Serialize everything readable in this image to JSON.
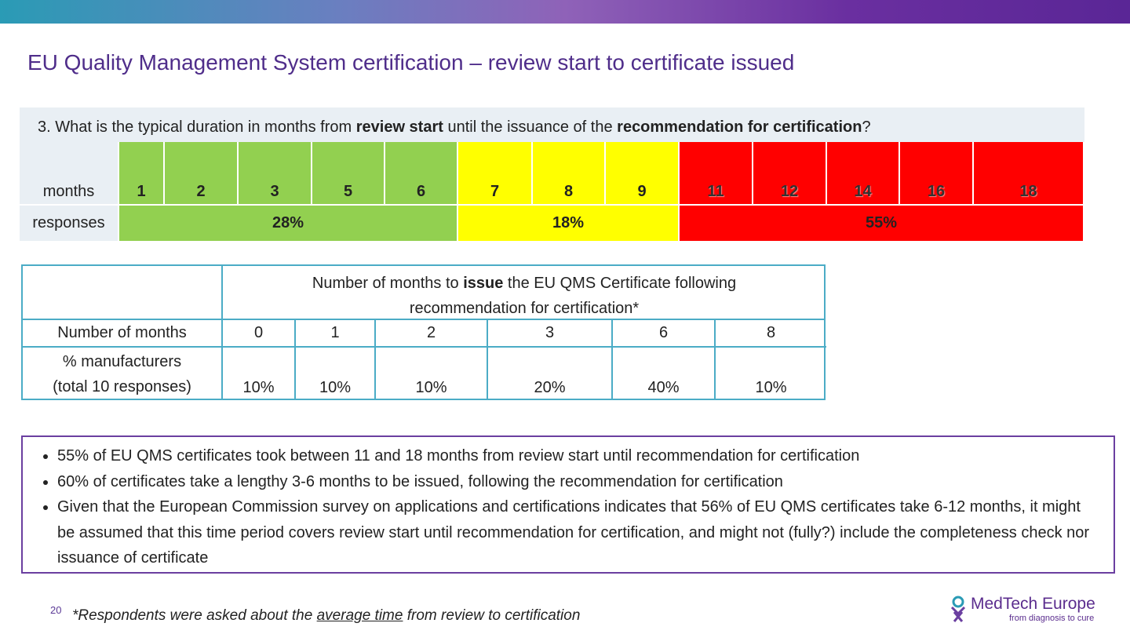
{
  "title": "EU Quality Management System certification – review start to certificate issued",
  "question_table": {
    "question": [
      "3. What is the typical duration in months from ",
      "review start",
      " until the issuance of the ",
      "recommendation for certification",
      "?"
    ],
    "row_labels": [
      "months",
      "responses"
    ],
    "groups": [
      {
        "color": "#92d050",
        "months": [
          "1",
          "2",
          "3",
          "5",
          "6"
        ],
        "response": "28%"
      },
      {
        "color": "#ffff00",
        "months": [
          "7",
          "8",
          "9"
        ],
        "response": "18%"
      },
      {
        "color": "#ff0000",
        "months": [
          "11",
          "12",
          "14",
          "16",
          "18"
        ],
        "response": "55%"
      }
    ]
  },
  "issue_table": {
    "header": [
      "Number of months to ",
      "issue",
      " the EU QMS Certificate following recommendation for certification*"
    ],
    "row_labels": [
      "Number of months",
      "% manufacturers (total 10 responses)"
    ],
    "months": [
      "0",
      "1",
      "2",
      "3",
      "6",
      "8"
    ],
    "shares": [
      "10%",
      "10%",
      "10%",
      "20%",
      "40%",
      "10%"
    ]
  },
  "bullets": [
    "55% of EU QMS certificates took between 11 and 18 months from review start until recommendation for certification",
    "60% of certificates take a lengthy 3-6 months to be issued, following the recommendation for certification",
    "Given that the European Commission survey on applications and certifications indicates that 56% of EU QMS certificates take 6-12 months, it might be assumed that this time period covers review start until recommendation for certification, and might not (fully?) include the completeness check nor issuance of certificate"
  ],
  "footer": {
    "page_number": "20",
    "footnote": [
      "*Respondents were asked about the ",
      "average time",
      " from review to certification"
    ],
    "logo": {
      "name": "MedTech Europe",
      "tagline": "from diagnosis to cure"
    }
  }
}
